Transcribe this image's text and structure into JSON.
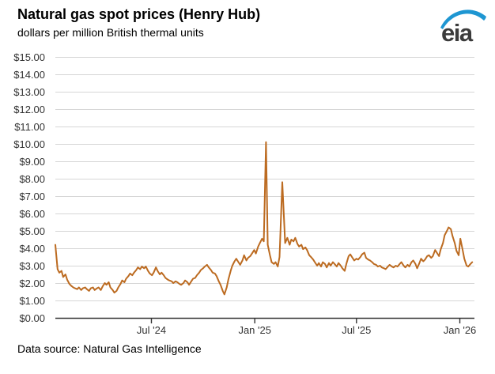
{
  "header": {
    "title": "Natural gas spot prices (Henry Hub)",
    "subtitle": "dollars per million British thermal units",
    "logo_text": "eia"
  },
  "footer": {
    "source": "Data source: Natural Gas Intelligence"
  },
  "colors": {
    "line": "#BC6B21",
    "grid": "#D6D6D6",
    "axis": "#333333",
    "tick_text": "#333333",
    "logo_text": "#3B3B3B",
    "logo_swoosh": "#1E96D2"
  },
  "chart_data": {
    "type": "line",
    "title": "Natural gas spot prices (Henry Hub)",
    "ylabel": "dollars per million British thermal units",
    "legend": "none",
    "grid": "horizontal",
    "ylim": [
      0,
      15
    ],
    "y_tick_interval": 1,
    "y_tick_labels": [
      "$0.00",
      "$1.00",
      "$2.00",
      "$3.00",
      "$4.00",
      "$5.00",
      "$6.00",
      "$7.00",
      "$8.00",
      "$9.00",
      "$10.00",
      "$11.00",
      "$12.00",
      "$13.00",
      "$14.00",
      "$15.00"
    ],
    "x_range": [
      "2024-01-12",
      "2026-01-27"
    ],
    "x_ticks": [
      {
        "date": "2024-07-01",
        "label": "Jul '24"
      },
      {
        "date": "2025-01-01",
        "label": "Jan '25"
      },
      {
        "date": "2025-07-01",
        "label": "Jul '25"
      },
      {
        "date": "2026-01-01",
        "label": "Jan '26"
      }
    ],
    "series": [
      {
        "name": "Henry Hub natural gas spot price",
        "x": [
          "2024-01-12",
          "2024-01-16",
          "2024-01-19",
          "2024-01-23",
          "2024-01-26",
          "2024-01-30",
          "2024-02-02",
          "2024-02-06",
          "2024-02-09",
          "2024-02-13",
          "2024-02-16",
          "2024-02-20",
          "2024-02-23",
          "2024-02-27",
          "2024-03-01",
          "2024-03-05",
          "2024-03-08",
          "2024-03-12",
          "2024-03-15",
          "2024-03-19",
          "2024-03-22",
          "2024-03-26",
          "2024-03-29",
          "2024-04-02",
          "2024-04-05",
          "2024-04-09",
          "2024-04-12",
          "2024-04-16",
          "2024-04-19",
          "2024-04-23",
          "2024-04-26",
          "2024-04-30",
          "2024-05-03",
          "2024-05-07",
          "2024-05-10",
          "2024-05-14",
          "2024-05-17",
          "2024-05-21",
          "2024-05-24",
          "2024-05-28",
          "2024-05-31",
          "2024-06-04",
          "2024-06-07",
          "2024-06-11",
          "2024-06-14",
          "2024-06-18",
          "2024-06-21",
          "2024-06-25",
          "2024-06-28",
          "2024-07-02",
          "2024-07-05",
          "2024-07-09",
          "2024-07-12",
          "2024-07-16",
          "2024-07-19",
          "2024-07-23",
          "2024-07-26",
          "2024-07-30",
          "2024-08-02",
          "2024-08-06",
          "2024-08-09",
          "2024-08-13",
          "2024-08-16",
          "2024-08-20",
          "2024-08-23",
          "2024-08-27",
          "2024-08-30",
          "2024-09-03",
          "2024-09-06",
          "2024-09-10",
          "2024-09-13",
          "2024-09-17",
          "2024-09-20",
          "2024-09-24",
          "2024-09-27",
          "2024-10-01",
          "2024-10-04",
          "2024-10-08",
          "2024-10-11",
          "2024-10-15",
          "2024-10-18",
          "2024-10-22",
          "2024-10-25",
          "2024-10-29",
          "2024-11-01",
          "2024-11-05",
          "2024-11-08",
          "2024-11-12",
          "2024-11-15",
          "2024-11-19",
          "2024-11-22",
          "2024-11-26",
          "2024-11-29",
          "2024-12-03",
          "2024-12-06",
          "2024-12-10",
          "2024-12-13",
          "2024-12-17",
          "2024-12-20",
          "2024-12-24",
          "2024-12-27",
          "2024-12-31",
          "2025-01-03",
          "2025-01-07",
          "2025-01-10",
          "2025-01-14",
          "2025-01-17",
          "2025-01-21",
          "2025-01-24",
          "2025-01-28",
          "2025-01-31",
          "2025-02-04",
          "2025-02-07",
          "2025-02-11",
          "2025-02-14",
          "2025-02-19",
          "2025-02-24",
          "2025-02-28",
          "2025-03-04",
          "2025-03-07",
          "2025-03-11",
          "2025-03-14",
          "2025-03-18",
          "2025-03-21",
          "2025-03-25",
          "2025-03-28",
          "2025-04-01",
          "2025-04-04",
          "2025-04-08",
          "2025-04-11",
          "2025-04-15",
          "2025-04-18",
          "2025-04-22",
          "2025-04-25",
          "2025-04-29",
          "2025-05-02",
          "2025-05-06",
          "2025-05-09",
          "2025-05-13",
          "2025-05-16",
          "2025-05-20",
          "2025-05-23",
          "2025-05-27",
          "2025-05-30",
          "2025-06-03",
          "2025-06-06",
          "2025-06-10",
          "2025-06-13",
          "2025-06-17",
          "2025-06-20",
          "2025-06-24",
          "2025-06-27",
          "2025-07-01",
          "2025-07-04",
          "2025-07-08",
          "2025-07-11",
          "2025-07-15",
          "2025-07-18",
          "2025-07-22",
          "2025-07-25",
          "2025-07-29",
          "2025-08-01",
          "2025-08-05",
          "2025-08-08",
          "2025-08-12",
          "2025-08-15",
          "2025-08-19",
          "2025-08-22",
          "2025-08-26",
          "2025-08-29",
          "2025-09-02",
          "2025-09-05",
          "2025-09-09",
          "2025-09-12",
          "2025-09-16",
          "2025-09-19",
          "2025-09-23",
          "2025-09-26",
          "2025-09-30",
          "2025-10-03",
          "2025-10-07",
          "2025-10-10",
          "2025-10-14",
          "2025-10-17",
          "2025-10-21",
          "2025-10-24",
          "2025-10-28",
          "2025-10-31",
          "2025-11-04",
          "2025-11-07",
          "2025-11-11",
          "2025-11-14",
          "2025-11-18",
          "2025-11-21",
          "2025-11-25",
          "2025-11-28",
          "2025-12-02",
          "2025-12-05",
          "2025-12-09",
          "2025-12-12",
          "2025-12-16",
          "2025-12-19",
          "2025-12-23",
          "2025-12-26",
          "2025-12-30",
          "2026-01-02",
          "2026-01-06",
          "2026-01-09",
          "2026-01-13",
          "2026-01-16",
          "2026-01-20",
          "2026-01-23"
        ],
        "values": [
          4.2,
          2.8,
          2.6,
          2.7,
          2.35,
          2.5,
          2.2,
          1.95,
          1.85,
          1.75,
          1.7,
          1.65,
          1.75,
          1.6,
          1.7,
          1.75,
          1.65,
          1.55,
          1.7,
          1.75,
          1.6,
          1.7,
          1.75,
          1.6,
          1.8,
          2.0,
          1.9,
          2.05,
          1.75,
          1.6,
          1.45,
          1.55,
          1.75,
          1.95,
          2.15,
          2.05,
          2.25,
          2.4,
          2.55,
          2.45,
          2.6,
          2.75,
          2.9,
          2.8,
          2.95,
          2.85,
          2.95,
          2.7,
          2.55,
          2.45,
          2.6,
          2.9,
          2.7,
          2.5,
          2.6,
          2.45,
          2.3,
          2.2,
          2.15,
          2.1,
          2.0,
          2.1,
          2.05,
          1.95,
          1.9,
          2.0,
          2.15,
          2.05,
          1.9,
          2.1,
          2.25,
          2.3,
          2.45,
          2.6,
          2.75,
          2.85,
          2.95,
          3.05,
          2.9,
          2.75,
          2.6,
          2.55,
          2.4,
          2.1,
          1.9,
          1.55,
          1.35,
          1.75,
          2.2,
          2.7,
          3.0,
          3.25,
          3.4,
          3.2,
          3.05,
          3.3,
          3.6,
          3.3,
          3.45,
          3.55,
          3.7,
          3.9,
          3.7,
          4.1,
          4.3,
          4.55,
          4.4,
          10.1,
          4.2,
          3.6,
          3.2,
          3.1,
          3.2,
          2.95,
          3.5,
          7.8,
          4.3,
          4.6,
          4.2,
          4.5,
          4.4,
          4.6,
          4.25,
          4.1,
          4.2,
          3.95,
          4.05,
          3.9,
          3.6,
          3.5,
          3.35,
          3.2,
          3.0,
          3.15,
          2.95,
          3.2,
          3.1,
          2.9,
          3.15,
          3.0,
          3.2,
          3.1,
          2.95,
          3.15,
          3.0,
          2.85,
          2.7,
          3.1,
          3.55,
          3.65,
          3.45,
          3.3,
          3.4,
          3.35,
          3.5,
          3.65,
          3.75,
          3.45,
          3.35,
          3.3,
          3.2,
          3.1,
          3.05,
          2.95,
          3.0,
          2.9,
          2.85,
          2.8,
          2.95,
          3.05,
          2.95,
          2.9,
          3.0,
          2.95,
          3.1,
          3.2,
          3.0,
          2.9,
          3.05,
          2.95,
          3.2,
          3.3,
          3.1,
          2.85,
          3.15,
          3.4,
          3.25,
          3.35,
          3.55,
          3.6,
          3.45,
          3.55,
          3.9,
          3.75,
          3.55,
          3.95,
          4.3,
          4.75,
          5.0,
          5.2,
          5.1,
          4.7,
          4.3,
          3.85,
          3.6,
          4.55,
          3.9,
          3.4,
          3.0,
          2.95,
          3.1,
          3.2
        ]
      }
    ]
  }
}
